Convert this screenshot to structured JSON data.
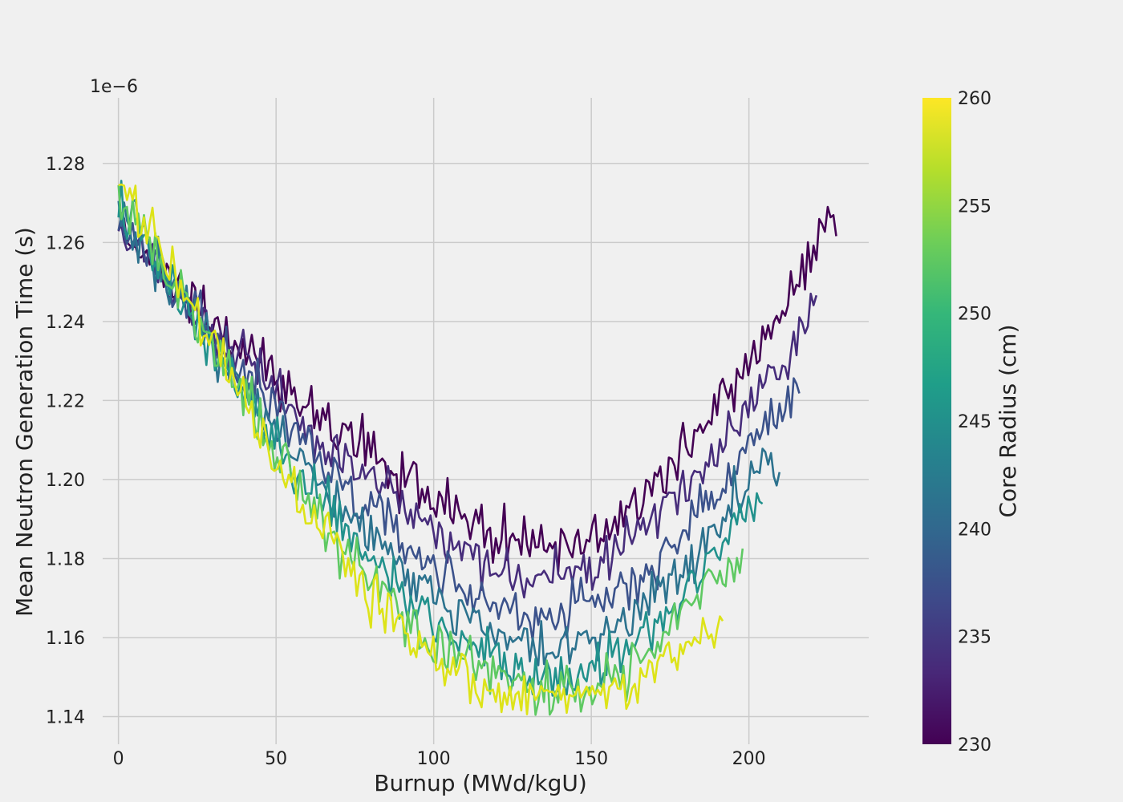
{
  "chart_data": {
    "type": "line",
    "xlabel": "Burnup (MWd/kgU)",
    "ylabel": "Mean Neutron Generation Time (s)",
    "y_offset_label": "1e−6",
    "xlim": [
      -5,
      238
    ],
    "ylim": [
      1.133,
      1.2966
    ],
    "x_ticks": [
      0,
      50,
      100,
      150,
      200
    ],
    "x_tick_labels": [
      "0",
      "50",
      "100",
      "150",
      "200"
    ],
    "y_ticks": [
      1.14,
      1.16,
      1.18,
      1.2,
      1.22,
      1.24,
      1.26,
      1.28
    ],
    "y_tick_labels": [
      "1.14",
      "1.16",
      "1.18",
      "1.20",
      "1.22",
      "1.24",
      "1.26",
      "1.28"
    ],
    "grid": true,
    "colorbar": {
      "label": "Core Radius (cm)",
      "range": [
        230,
        260
      ],
      "ticks": [
        230,
        235,
        240,
        245,
        250,
        255,
        260
      ],
      "tick_labels": [
        "230",
        "235",
        "240",
        "245",
        "250",
        "255",
        "260"
      ],
      "colormap": [
        "#440154",
        "#482878",
        "#3e4989",
        "#31688e",
        "#26828e",
        "#1f9e89",
        "#35b779",
        "#6ece58",
        "#b5de2b",
        "#fde725"
      ]
    },
    "series": [
      {
        "radius": 230,
        "color": "#440154",
        "x": [
          0,
          10,
          20,
          30,
          40,
          50,
          60,
          70,
          80,
          90,
          100,
          110,
          120,
          130,
          140,
          150,
          160,
          170,
          180,
          190,
          200,
          210,
          220,
          228
        ],
        "y": [
          1.263,
          1.256,
          1.248,
          1.24,
          1.233,
          1.225,
          1.219,
          1.212,
          1.206,
          1.2,
          1.195,
          1.19,
          1.186,
          1.183,
          1.183,
          1.186,
          1.191,
          1.198,
          1.207,
          1.218,
          1.23,
          1.243,
          1.257,
          1.266
        ]
      },
      {
        "radius": 235,
        "color": "#472d7b",
        "x": [
          0,
          10,
          20,
          30,
          40,
          50,
          60,
          70,
          80,
          90,
          100,
          110,
          120,
          130,
          140,
          150,
          160,
          170,
          180,
          190,
          200,
          210,
          222
        ],
        "y": [
          1.264,
          1.255,
          1.246,
          1.238,
          1.23,
          1.222,
          1.214,
          1.207,
          1.2,
          1.193,
          1.187,
          1.182,
          1.178,
          1.176,
          1.175,
          1.177,
          1.182,
          1.189,
          1.198,
          1.208,
          1.219,
          1.23,
          1.245
        ]
      },
      {
        "radius": 240,
        "color": "#3b528b",
        "x": [
          0,
          10,
          20,
          30,
          40,
          50,
          60,
          70,
          80,
          90,
          100,
          110,
          120,
          130,
          140,
          150,
          160,
          170,
          180,
          190,
          200,
          210,
          216
        ],
        "y": [
          1.266,
          1.256,
          1.246,
          1.236,
          1.227,
          1.218,
          1.209,
          1.2,
          1.192,
          1.185,
          1.178,
          1.172,
          1.168,
          1.166,
          1.166,
          1.168,
          1.172,
          1.179,
          1.187,
          1.197,
          1.208,
          1.218,
          1.224
        ]
      },
      {
        "radius": 245,
        "color": "#2c728e",
        "x": [
          0,
          10,
          20,
          30,
          40,
          50,
          60,
          70,
          80,
          90,
          100,
          110,
          120,
          130,
          140,
          150,
          160,
          170,
          180,
          190,
          200,
          210
        ],
        "y": [
          1.268,
          1.257,
          1.246,
          1.235,
          1.224,
          1.213,
          1.203,
          1.194,
          1.186,
          1.178,
          1.171,
          1.165,
          1.161,
          1.158,
          1.157,
          1.159,
          1.163,
          1.17,
          1.179,
          1.189,
          1.199,
          1.205
        ]
      },
      {
        "radius": 250,
        "color": "#21918c",
        "x": [
          0,
          10,
          20,
          30,
          40,
          50,
          60,
          70,
          80,
          90,
          100,
          110,
          120,
          130,
          140,
          150,
          160,
          170,
          180,
          190,
          200,
          205
        ],
        "y": [
          1.27,
          1.258,
          1.246,
          1.234,
          1.222,
          1.21,
          1.199,
          1.189,
          1.18,
          1.172,
          1.165,
          1.159,
          1.155,
          1.152,
          1.151,
          1.152,
          1.156,
          1.163,
          1.172,
          1.183,
          1.193,
          1.197
        ]
      },
      {
        "radius": 255,
        "color": "#5ec962",
        "x": [
          0,
          10,
          20,
          30,
          40,
          50,
          60,
          70,
          80,
          90,
          100,
          110,
          120,
          130,
          140,
          150,
          160,
          170,
          180,
          190,
          198
        ],
        "y": [
          1.272,
          1.259,
          1.246,
          1.233,
          1.22,
          1.207,
          1.195,
          1.184,
          1.175,
          1.167,
          1.16,
          1.154,
          1.15,
          1.148,
          1.147,
          1.148,
          1.151,
          1.157,
          1.166,
          1.176,
          1.179
        ]
      },
      {
        "radius": 260,
        "color": "#dde318",
        "x": [
          0,
          10,
          20,
          30,
          40,
          50,
          60,
          70,
          80,
          90,
          100,
          110,
          120,
          130,
          140,
          150,
          160,
          170,
          180,
          190,
          192
        ],
        "y": [
          1.276,
          1.262,
          1.248,
          1.234,
          1.219,
          1.205,
          1.192,
          1.181,
          1.171,
          1.162,
          1.155,
          1.149,
          1.145,
          1.144,
          1.144,
          1.145,
          1.147,
          1.151,
          1.156,
          1.163,
          1.165
        ]
      }
    ]
  }
}
